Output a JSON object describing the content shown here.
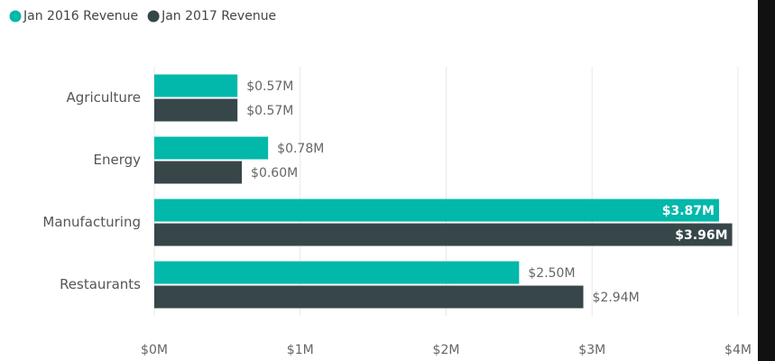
{
  "chart_data": {
    "type": "hbar",
    "categories": [
      "Agriculture",
      "Energy",
      "Manufacturing",
      "Restaurants"
    ],
    "series": [
      {
        "name": "Jan 2016 Revenue",
        "color": "#01b8aa",
        "values": [
          0.57,
          0.78,
          3.87,
          2.5
        ],
        "value_labels": [
          "$0.57M",
          "$0.78M",
          "$3.87M",
          "$2.50M"
        ]
      },
      {
        "name": "Jan 2017 Revenue",
        "color": "#374649",
        "values": [
          0.57,
          0.6,
          3.96,
          2.94
        ],
        "value_labels": [
          "$0.57M",
          "$0.60M",
          "$3.96M",
          "$2.94M"
        ]
      }
    ],
    "xlim": [
      0,
      4
    ],
    "xticks": [
      {
        "value": 0,
        "label": "$0M"
      },
      {
        "value": 1,
        "label": "$1M"
      },
      {
        "value": 2,
        "label": "$2M"
      },
      {
        "value": 3,
        "label": "$3M"
      },
      {
        "value": 4,
        "label": "$4M"
      }
    ],
    "grid": true
  }
}
